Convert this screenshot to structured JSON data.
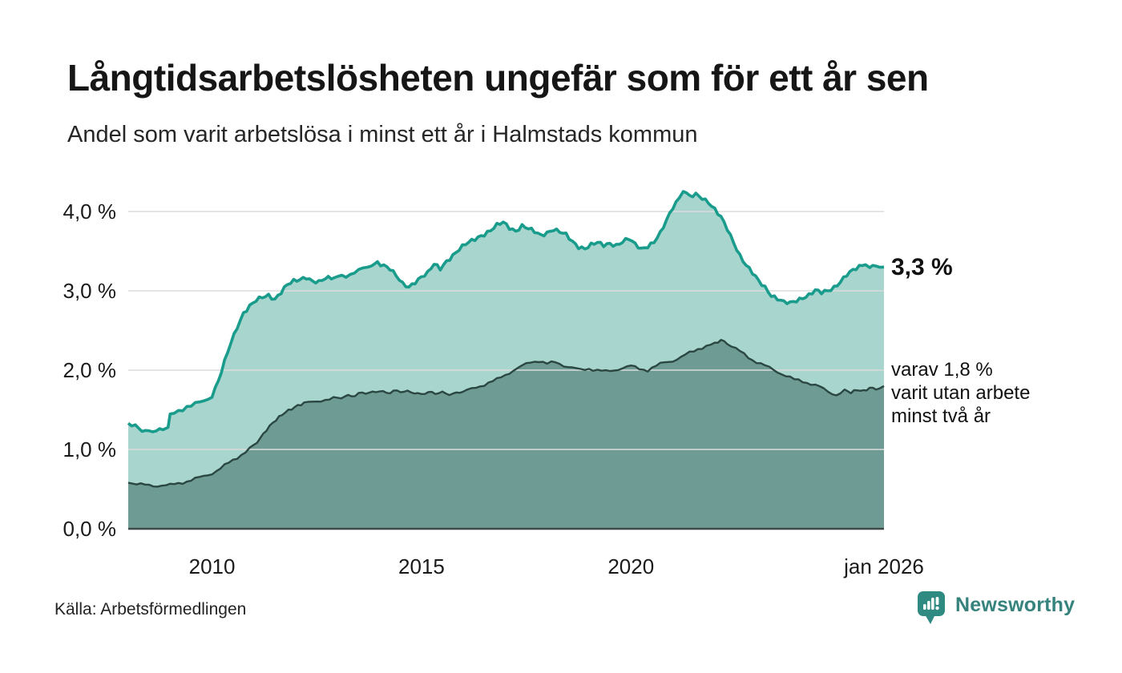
{
  "title": "Långtidsarbetslösheten ungefär som för ett år sen",
  "subtitle": "Andel som varit arbetslösa i minst ett år i Halmstads kommun",
  "source": "Källa: Arbetsförmedlingen",
  "branding": {
    "name": "Newsworthy",
    "icon": "newsworthy-chart-bubble-icon",
    "icon_color": "#2F8A82",
    "text_color": "#35837C"
  },
  "annotations": {
    "latest_total": "3,3 %",
    "secondary_line1": "varav 1,8 %",
    "secondary_line2": "varit utan arbete",
    "secondary_line3": "minst två år"
  },
  "colors": {
    "background": "#FFFFFF",
    "title_text": "#161616",
    "teal_line": "#1A9C8C",
    "teal_fill": "#A8D6CF",
    "dark_line": "#2B4742",
    "dark_fill": "#6F9B95",
    "gridline": "#DCDCDC",
    "baseline": "#3F4A47"
  },
  "chart_data": {
    "type": "area",
    "title": "Långtidsarbetslösheten ungefär som för ett år sen",
    "subtitle": "Andel som varit arbetslösa i minst ett år i Halmstads kommun",
    "region": "Halmstads kommun",
    "unit": "%",
    "grid": true,
    "legend_position": "right-annotations",
    "latest_values": {
      "minst_ett_ar_pct": 3.3,
      "minst_tva_ar_pct": 1.8
    },
    "x_axis": {
      "ticks": [
        "2010",
        "2015",
        "2020",
        "jan 2026"
      ],
      "tick_years": [
        2010,
        2015,
        2020,
        2026.04
      ],
      "range": [
        2008.0,
        2026.04
      ]
    },
    "y_axis": {
      "ticks": [
        "4,0 %",
        "3,0 %",
        "2,0 %",
        "1,0 %",
        "0,0 %"
      ],
      "tick_values": [
        4,
        3,
        2,
        1,
        0
      ],
      "range": [
        0,
        4.45
      ]
    },
    "series": [
      {
        "name": "Arbetslösa minst ett år",
        "line_color": "#1A9C8C",
        "fill_color": "#A8D6CF",
        "points": [
          [
            2008.0,
            1.33
          ],
          [
            2008.17,
            1.28
          ],
          [
            2008.33,
            1.25
          ],
          [
            2008.5,
            1.22
          ],
          [
            2008.67,
            1.24
          ],
          [
            2008.83,
            1.27
          ],
          [
            2008.95,
            1.3
          ],
          [
            2009.0,
            1.42
          ],
          [
            2009.2,
            1.48
          ],
          [
            2009.4,
            1.55
          ],
          [
            2009.6,
            1.57
          ],
          [
            2009.8,
            1.6
          ],
          [
            2010.0,
            1.68
          ],
          [
            2010.15,
            1.85
          ],
          [
            2010.3,
            2.1
          ],
          [
            2010.45,
            2.35
          ],
          [
            2010.6,
            2.55
          ],
          [
            2010.75,
            2.72
          ],
          [
            2010.9,
            2.8
          ],
          [
            2011.05,
            2.87
          ],
          [
            2011.2,
            2.92
          ],
          [
            2011.35,
            2.95
          ],
          [
            2011.5,
            2.9
          ],
          [
            2011.65,
            2.98
          ],
          [
            2011.8,
            3.07
          ],
          [
            2011.95,
            3.12
          ],
          [
            2012.1,
            3.15
          ],
          [
            2012.25,
            3.18
          ],
          [
            2012.4,
            3.12
          ],
          [
            2012.55,
            3.1
          ],
          [
            2012.7,
            3.15
          ],
          [
            2012.85,
            3.17
          ],
          [
            2013.0,
            3.18
          ],
          [
            2013.2,
            3.2
          ],
          [
            2013.4,
            3.23
          ],
          [
            2013.6,
            3.27
          ],
          [
            2013.8,
            3.32
          ],
          [
            2013.95,
            3.36
          ],
          [
            2014.1,
            3.33
          ],
          [
            2014.25,
            3.28
          ],
          [
            2014.4,
            3.18
          ],
          [
            2014.55,
            3.08
          ],
          [
            2014.7,
            3.05
          ],
          [
            2014.85,
            3.12
          ],
          [
            2015.0,
            3.18
          ],
          [
            2015.15,
            3.22
          ],
          [
            2015.3,
            3.33
          ],
          [
            2015.45,
            3.28
          ],
          [
            2015.6,
            3.38
          ],
          [
            2015.75,
            3.45
          ],
          [
            2015.9,
            3.52
          ],
          [
            2016.05,
            3.58
          ],
          [
            2016.2,
            3.63
          ],
          [
            2016.35,
            3.68
          ],
          [
            2016.5,
            3.72
          ],
          [
            2016.65,
            3.76
          ],
          [
            2016.8,
            3.82
          ],
          [
            2016.95,
            3.86
          ],
          [
            2017.1,
            3.8
          ],
          [
            2017.25,
            3.76
          ],
          [
            2017.4,
            3.82
          ],
          [
            2017.55,
            3.78
          ],
          [
            2017.7,
            3.74
          ],
          [
            2017.85,
            3.7
          ],
          [
            2018.0,
            3.74
          ],
          [
            2018.15,
            3.78
          ],
          [
            2018.3,
            3.74
          ],
          [
            2018.45,
            3.7
          ],
          [
            2018.6,
            3.62
          ],
          [
            2018.75,
            3.56
          ],
          [
            2018.9,
            3.54
          ],
          [
            2019.05,
            3.58
          ],
          [
            2019.2,
            3.6
          ],
          [
            2019.35,
            3.57
          ],
          [
            2019.5,
            3.6
          ],
          [
            2019.65,
            3.58
          ],
          [
            2019.8,
            3.62
          ],
          [
            2019.95,
            3.65
          ],
          [
            2020.1,
            3.58
          ],
          [
            2020.25,
            3.53
          ],
          [
            2020.4,
            3.57
          ],
          [
            2020.55,
            3.62
          ],
          [
            2020.7,
            3.72
          ],
          [
            2020.85,
            3.88
          ],
          [
            2021.0,
            4.05
          ],
          [
            2021.15,
            4.18
          ],
          [
            2021.25,
            4.26
          ],
          [
            2021.4,
            4.18
          ],
          [
            2021.55,
            4.22
          ],
          [
            2021.7,
            4.18
          ],
          [
            2021.85,
            4.12
          ],
          [
            2022.0,
            4.02
          ],
          [
            2022.15,
            3.92
          ],
          [
            2022.3,
            3.78
          ],
          [
            2022.45,
            3.62
          ],
          [
            2022.6,
            3.45
          ],
          [
            2022.75,
            3.32
          ],
          [
            2022.9,
            3.22
          ],
          [
            2023.05,
            3.12
          ],
          [
            2023.2,
            3.05
          ],
          [
            2023.35,
            2.95
          ],
          [
            2023.5,
            2.9
          ],
          [
            2023.65,
            2.85
          ],
          [
            2023.8,
            2.84
          ],
          [
            2023.95,
            2.88
          ],
          [
            2024.1,
            2.92
          ],
          [
            2024.25,
            2.95
          ],
          [
            2024.4,
            3.0
          ],
          [
            2024.55,
            2.97
          ],
          [
            2024.7,
            3.0
          ],
          [
            2024.85,
            3.05
          ],
          [
            2025.0,
            3.12
          ],
          [
            2025.15,
            3.2
          ],
          [
            2025.3,
            3.25
          ],
          [
            2025.45,
            3.3
          ],
          [
            2025.6,
            3.35
          ],
          [
            2025.7,
            3.28
          ],
          [
            2025.85,
            3.32
          ],
          [
            2026.04,
            3.3
          ]
        ]
      },
      {
        "name": "Varav utan arbete minst två år",
        "line_color": "#2B4742",
        "fill_color": "#6F9B95",
        "points": [
          [
            2008.0,
            0.58
          ],
          [
            2008.2,
            0.57
          ],
          [
            2008.4,
            0.55
          ],
          [
            2008.6,
            0.54
          ],
          [
            2008.8,
            0.55
          ],
          [
            2009.0,
            0.55
          ],
          [
            2009.2,
            0.57
          ],
          [
            2009.4,
            0.6
          ],
          [
            2009.6,
            0.63
          ],
          [
            2009.8,
            0.66
          ],
          [
            2010.0,
            0.7
          ],
          [
            2010.2,
            0.76
          ],
          [
            2010.4,
            0.83
          ],
          [
            2010.6,
            0.9
          ],
          [
            2010.8,
            0.97
          ],
          [
            2011.0,
            1.05
          ],
          [
            2011.15,
            1.15
          ],
          [
            2011.3,
            1.25
          ],
          [
            2011.45,
            1.33
          ],
          [
            2011.6,
            1.4
          ],
          [
            2011.75,
            1.47
          ],
          [
            2011.9,
            1.52
          ],
          [
            2012.05,
            1.56
          ],
          [
            2012.2,
            1.58
          ],
          [
            2012.4,
            1.6
          ],
          [
            2012.6,
            1.62
          ],
          [
            2012.8,
            1.63
          ],
          [
            2013.0,
            1.65
          ],
          [
            2013.25,
            1.67
          ],
          [
            2013.5,
            1.7
          ],
          [
            2013.75,
            1.72
          ],
          [
            2014.0,
            1.73
          ],
          [
            2014.25,
            1.72
          ],
          [
            2014.5,
            1.74
          ],
          [
            2014.75,
            1.72
          ],
          [
            2015.0,
            1.7
          ],
          [
            2015.25,
            1.72
          ],
          [
            2015.5,
            1.71
          ],
          [
            2015.75,
            1.7
          ],
          [
            2016.0,
            1.73
          ],
          [
            2016.2,
            1.76
          ],
          [
            2016.4,
            1.8
          ],
          [
            2016.6,
            1.84
          ],
          [
            2016.8,
            1.88
          ],
          [
            2017.0,
            1.94
          ],
          [
            2017.2,
            2.0
          ],
          [
            2017.4,
            2.05
          ],
          [
            2017.6,
            2.1
          ],
          [
            2017.8,
            2.12
          ],
          [
            2018.0,
            2.08
          ],
          [
            2018.2,
            2.1
          ],
          [
            2018.4,
            2.06
          ],
          [
            2018.6,
            2.03
          ],
          [
            2018.8,
            2.0
          ],
          [
            2019.0,
            2.02
          ],
          [
            2019.2,
            2.0
          ],
          [
            2019.4,
            1.98
          ],
          [
            2019.6,
            2.0
          ],
          [
            2019.8,
            2.03
          ],
          [
            2020.0,
            2.05
          ],
          [
            2020.2,
            2.02
          ],
          [
            2020.4,
            2.0
          ],
          [
            2020.6,
            2.05
          ],
          [
            2020.8,
            2.1
          ],
          [
            2021.0,
            2.12
          ],
          [
            2021.2,
            2.16
          ],
          [
            2021.4,
            2.22
          ],
          [
            2021.6,
            2.27
          ],
          [
            2021.8,
            2.3
          ],
          [
            2022.0,
            2.33
          ],
          [
            2022.15,
            2.37
          ],
          [
            2022.3,
            2.34
          ],
          [
            2022.5,
            2.27
          ],
          [
            2022.7,
            2.2
          ],
          [
            2022.9,
            2.13
          ],
          [
            2023.1,
            2.08
          ],
          [
            2023.3,
            2.03
          ],
          [
            2023.5,
            1.98
          ],
          [
            2023.7,
            1.93
          ],
          [
            2023.9,
            1.88
          ],
          [
            2024.1,
            1.86
          ],
          [
            2024.3,
            1.83
          ],
          [
            2024.5,
            1.79
          ],
          [
            2024.7,
            1.73
          ],
          [
            2024.9,
            1.69
          ],
          [
            2025.1,
            1.74
          ],
          [
            2025.25,
            1.72
          ],
          [
            2025.4,
            1.76
          ],
          [
            2025.55,
            1.74
          ],
          [
            2025.7,
            1.77
          ],
          [
            2025.85,
            1.76
          ],
          [
            2026.04,
            1.8
          ]
        ]
      }
    ]
  }
}
